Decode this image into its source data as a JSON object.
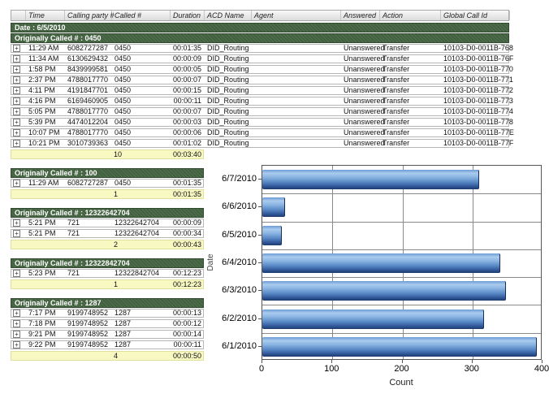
{
  "report": {
    "columns": [
      "Time",
      "Calling party #",
      "Called #",
      "Duration",
      "ACD Name",
      "Agent",
      "Answered",
      "Action",
      "Global Call Id"
    ],
    "date_header": "Date : 6/5/2010",
    "expand_glyph": "+",
    "groups": [
      {
        "title": "Originally Called # : 0450",
        "wide": true,
        "rows": [
          [
            "11:29 AM",
            "6082727287",
            "0450",
            "00:01:35",
            "DID_Routing",
            "",
            "Unanswered",
            "Transfer",
            "10103-D0-0011B-768"
          ],
          [
            "11:34 AM",
            "6130629432",
            "0450",
            "00:00:09",
            "DID_Routing",
            "",
            "Unanswered",
            "Transfer",
            "10103-D0-0011B-76F"
          ],
          [
            "1:58 PM",
            "8439999581",
            "0450",
            "00:00:05",
            "DID_Routing",
            "",
            "Unanswered",
            "Transfer",
            "10103-D0-0011B-770"
          ],
          [
            "2:37 PM",
            "4788017770",
            "0450",
            "00:00:07",
            "DID_Routing",
            "",
            "Unanswered",
            "Transfer",
            "10103-D0-0011B-771"
          ],
          [
            "4:11 PM",
            "4191847701",
            "0450",
            "00:00:15",
            "DID_Routing",
            "",
            "Unanswered",
            "Transfer",
            "10103-D0-0011B-772"
          ],
          [
            "4:16 PM",
            "6169460905",
            "0450",
            "00:00:11",
            "DID_Routing",
            "",
            "Unanswered",
            "Transfer",
            "10103-D0-0011B-773"
          ],
          [
            "5:05 PM",
            "4788017770",
            "0450",
            "00:00:07",
            "DID_Routing",
            "",
            "Unanswered",
            "Transfer",
            "10103-D0-0011B-774"
          ],
          [
            "5:39 PM",
            "4474012204",
            "0450",
            "00:00:03",
            "DID_Routing",
            "",
            "Unanswered",
            "Transfer",
            "10103-D0-0011B-778"
          ],
          [
            "10:07 PM",
            "4788017770",
            "0450",
            "00:00:06",
            "DID_Routing",
            "",
            "Unanswered",
            "Transfer",
            "10103-D0-0011B-77E"
          ],
          [
            "10:21 PM",
            "3010739363",
            "0450",
            "00:01:02",
            "DID_Routing",
            "",
            "Unanswered",
            "Transfer",
            "10103-D0-0011B-77F"
          ]
        ],
        "summary": {
          "count": "10",
          "total": "00:03:40"
        }
      },
      {
        "title": "Originally Called # : 100",
        "wide": false,
        "rows": [
          [
            "11:29 AM",
            "6082727287",
            "0450",
            "00:01:35"
          ]
        ],
        "summary": {
          "count": "1",
          "total": "00:01:35"
        }
      },
      {
        "title": "Originally Called # : 12322642704",
        "wide": false,
        "rows": [
          [
            "5:21 PM",
            "721",
            "12322642704",
            "00:00:09"
          ],
          [
            "5:21 PM",
            "721",
            "12322642704",
            "00:00:34"
          ]
        ],
        "summary": {
          "count": "2",
          "total": "00:00:43"
        }
      },
      {
        "title": "Originally Called # : 12322842704",
        "wide": false,
        "rows": [
          [
            "5:23 PM",
            "721",
            "12322842704",
            "00:12:23"
          ]
        ],
        "summary": {
          "count": "1",
          "total": "00:12:23"
        }
      },
      {
        "title": "Originally Called # : 1287",
        "wide": false,
        "rows": [
          [
            "7:17 PM",
            "9199748952",
            "1287",
            "00:00:13"
          ],
          [
            "7:18 PM",
            "9199748952",
            "1287",
            "00:00:12"
          ],
          [
            "9:21 PM",
            "9199748952",
            "1287",
            "00:00:14"
          ],
          [
            "9:22 PM",
            "9199748952",
            "1287",
            "00:00:11"
          ]
        ],
        "summary": {
          "count": "4",
          "total": "00:00:50"
        }
      }
    ]
  },
  "chart_data": {
    "type": "bar",
    "orientation": "horizontal",
    "title": "",
    "categories": [
      "6/7/2010",
      "6/6/2010",
      "6/5/2010",
      "6/4/2010",
      "6/3/2010",
      "6/2/2010",
      "6/1/2010"
    ],
    "values": [
      309,
      33,
      28,
      340,
      348,
      317,
      392
    ],
    "xlabel": "Count",
    "ylabel": "Date",
    "xlim": [
      0,
      400
    ],
    "xticks": [
      0,
      100,
      200,
      300,
      400
    ],
    "grid": true,
    "legend": false,
    "bar_color": "#4f83c2"
  },
  "colors": {
    "group_header_bg": "#41603e",
    "group_header_text": "#ffffff",
    "summary_bg": "#f8f8c3",
    "bar_blue": "#4f83c2",
    "grid_line": "#8a8a8a"
  }
}
